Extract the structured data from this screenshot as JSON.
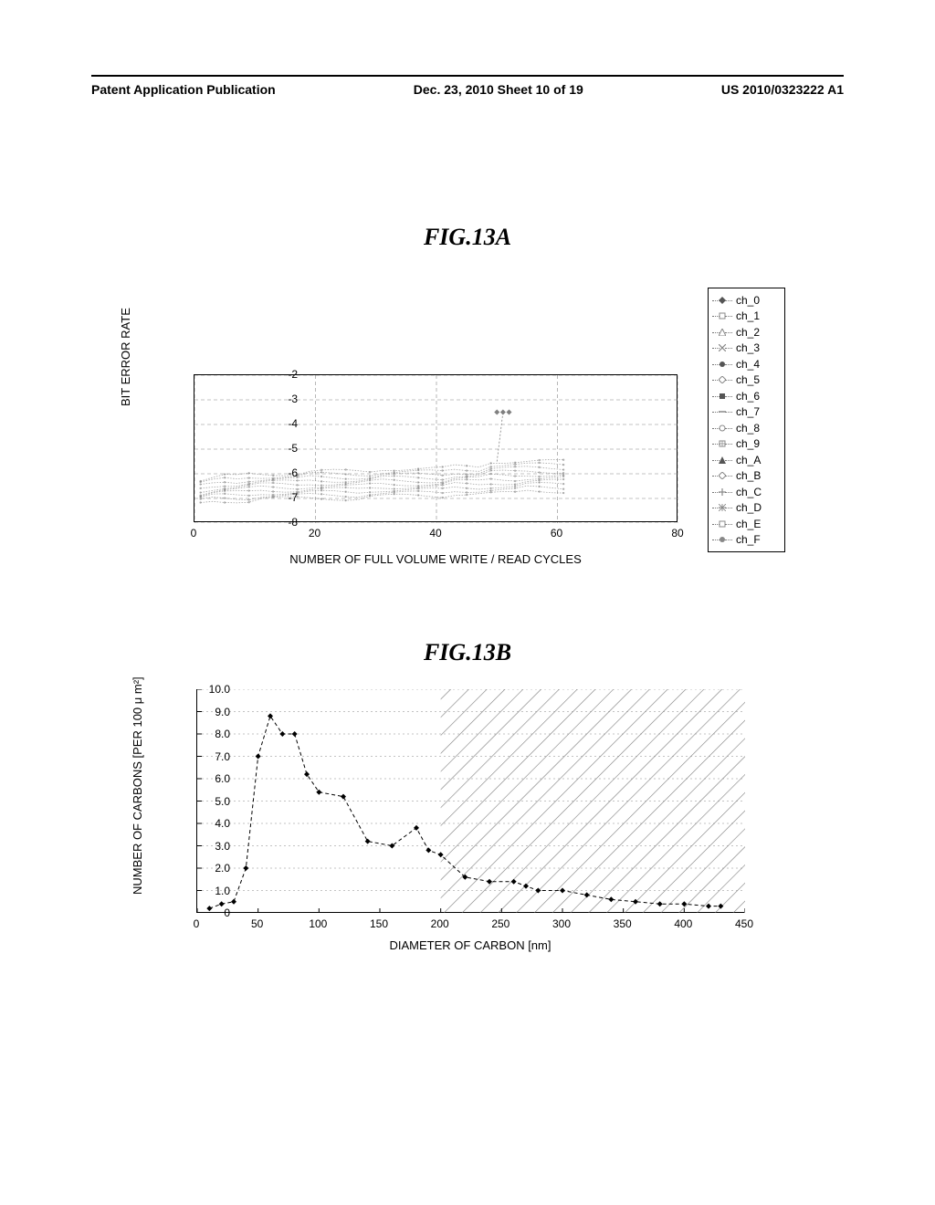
{
  "header": {
    "left": "Patent Application Publication",
    "center": "Dec. 23, 2010  Sheet 10 of 19",
    "right": "US 2010/0323222 A1"
  },
  "figA": {
    "title": "FIG.13A",
    "type": "line",
    "ylabel": "BIT ERROR RATE",
    "xlabel": "NUMBER OF FULL VOLUME WRITE / READ CYCLES",
    "xlim": [
      0,
      80
    ],
    "ylim": [
      -8,
      -2
    ],
    "xticks": [
      0,
      20,
      40,
      60,
      80
    ],
    "yticks": [
      -8,
      -7,
      -6,
      -5,
      -4,
      -3,
      -2
    ],
    "xtick_step": 20,
    "ytick_step": 1,
    "grid_color": "#888888",
    "grid_style": "dashed",
    "background_color": "#ffffff",
    "label_fontsize": 13,
    "tick_fontsize": 12,
    "legend_border_color": "#000000",
    "line_color_band": "#808080",
    "series_band": {
      "x": [
        1,
        3,
        5,
        7,
        9,
        11,
        13,
        15,
        17,
        19,
        21,
        23,
        25,
        27,
        29,
        31,
        33,
        35,
        37,
        39,
        41,
        43,
        45,
        47,
        49,
        51,
        53,
        55,
        57,
        59,
        61
      ],
      "y_top": [
        -6.3,
        -6.2,
        -6.1,
        -6.1,
        -6.0,
        -6.0,
        -6.0,
        -6.0,
        -6.0,
        -5.9,
        -5.9,
        -5.9,
        -5.9,
        -5.9,
        -5.9,
        -5.8,
        -5.8,
        -5.8,
        -5.8,
        -5.8,
        -5.8,
        -5.7,
        -5.7,
        -5.7,
        -5.5,
        -5.5,
        -5.5,
        -5.5,
        -5.5,
        -5.5,
        -5.5
      ],
      "y_bottom": [
        -7.2,
        -7.1,
        -7.1,
        -7.1,
        -7.1,
        -7.0,
        -7.0,
        -7.0,
        -7.0,
        -7.0,
        -7.0,
        -7.0,
        -7.0,
        -7.0,
        -6.9,
        -6.9,
        -6.9,
        -6.9,
        -6.9,
        -6.9,
        -6.9,
        -6.8,
        -6.8,
        -6.8,
        -6.8,
        -6.8,
        -6.8,
        -6.7,
        -6.7,
        -6.7,
        -6.7
      ]
    },
    "outlier_series": {
      "x": [
        50,
        51,
        52
      ],
      "y": [
        -3.5,
        -3.5,
        -3.5
      ],
      "color": "#808080",
      "marker": "diamond"
    },
    "legend_items": [
      {
        "label": "ch_0",
        "marker": "diamond-filled",
        "color": "#555555"
      },
      {
        "label": "ch_1",
        "marker": "square-open",
        "color": "#888888"
      },
      {
        "label": "ch_2",
        "marker": "triangle-open",
        "color": "#888888"
      },
      {
        "label": "ch_3",
        "marker": "x",
        "color": "#888888"
      },
      {
        "label": "ch_4",
        "marker": "circle-filled",
        "color": "#555555"
      },
      {
        "label": "ch_5",
        "marker": "diamond-open",
        "color": "#888888"
      },
      {
        "label": "ch_6",
        "marker": "square-filled",
        "color": "#555555"
      },
      {
        "label": "ch_7",
        "marker": "dash",
        "color": "#888888"
      },
      {
        "label": "ch_8",
        "marker": "circle-open",
        "color": "#888888"
      },
      {
        "label": "ch_9",
        "marker": "grid",
        "color": "#888888"
      },
      {
        "label": "ch_A",
        "marker": "triangle-filled",
        "color": "#555555"
      },
      {
        "label": "ch_B",
        "marker": "diamond-open",
        "color": "#888888"
      },
      {
        "label": "ch_C",
        "marker": "plus",
        "color": "#888888"
      },
      {
        "label": "ch_D",
        "marker": "asterisk",
        "color": "#888888"
      },
      {
        "label": "ch_E",
        "marker": "square-open",
        "color": "#888888"
      },
      {
        "label": "ch_F",
        "marker": "circle-filled",
        "color": "#888888"
      }
    ]
  },
  "figB": {
    "title": "FIG.13B",
    "type": "line",
    "ylabel": "NUMBER OF CARBONS [PER 100 μ m²]",
    "xlabel": "DIAMETER OF CARBON [nm]",
    "xlim": [
      0,
      450
    ],
    "ylim": [
      0,
      10.0
    ],
    "xticks": [
      0,
      50,
      100,
      150,
      200,
      250,
      300,
      350,
      400,
      450
    ],
    "yticks": [
      0,
      1.0,
      2.0,
      3.0,
      4.0,
      5.0,
      6.0,
      7.0,
      8.0,
      9.0,
      10.0
    ],
    "xtick_step": 50,
    "ytick_step": 1.0,
    "grid_color": "#888888",
    "grid_style": "dotted",
    "background_color": "#ffffff",
    "label_fontsize": 13,
    "tick_fontsize": 12,
    "hatched_region": {
      "x_start": 200,
      "x_end": 450,
      "hatch_color": "#666666"
    },
    "series": {
      "x": [
        10,
        20,
        30,
        40,
        50,
        60,
        70,
        80,
        90,
        100,
        120,
        140,
        160,
        180,
        190,
        200,
        220,
        240,
        260,
        270,
        280,
        300,
        320,
        340,
        360,
        380,
        400,
        420,
        430
      ],
      "y": [
        0.2,
        0.4,
        0.5,
        2.0,
        7.0,
        8.8,
        8.0,
        8.0,
        6.2,
        5.4,
        5.2,
        3.2,
        3.0,
        3.8,
        2.8,
        2.6,
        1.6,
        1.4,
        1.4,
        1.2,
        1.0,
        1.0,
        0.8,
        0.6,
        0.5,
        0.4,
        0.4,
        0.3,
        0.3
      ],
      "color": "#000000",
      "marker": "diamond-filled",
      "marker_size": 6,
      "line_style": "dashed",
      "line_width": 1
    }
  }
}
